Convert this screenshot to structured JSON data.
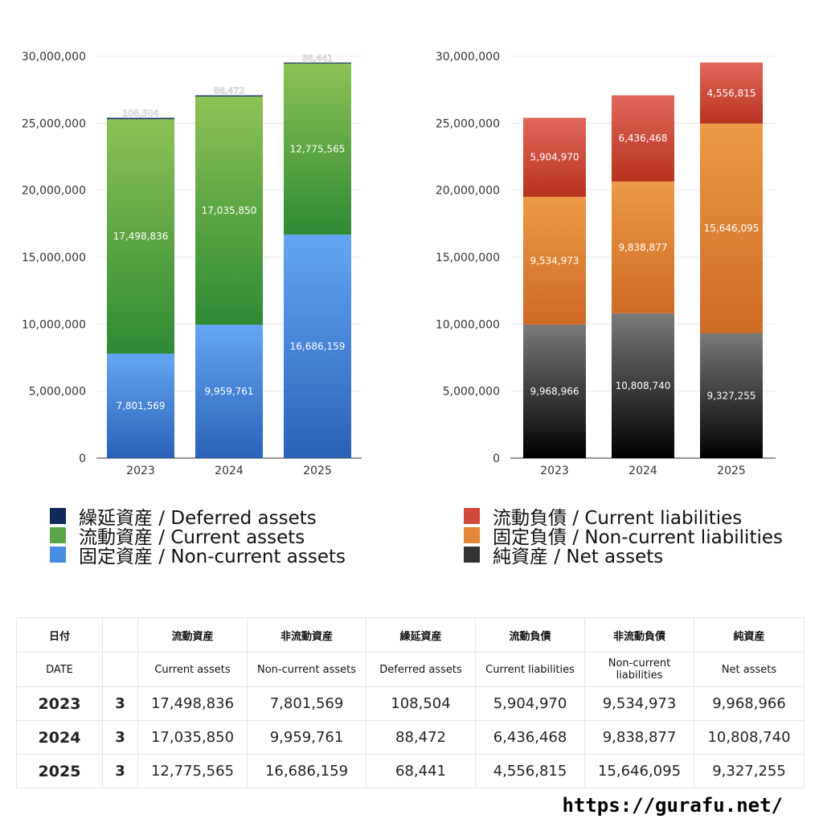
{
  "chart_data": [
    {
      "type": "bar",
      "stacked": true,
      "categories": [
        "2023",
        "2024",
        "2025"
      ],
      "ylim": [
        0,
        30000000
      ],
      "yticks": [
        "0",
        "5,000,000",
        "10,000,000",
        "15,000,000",
        "20,000,000",
        "25,000,000",
        "30,000,000"
      ],
      "series": [
        {
          "name": "固定資産 / Non-current assets",
          "values": [
            7801569,
            9959761,
            16686159
          ],
          "labels": [
            "7,801,569",
            "9,959,761",
            "16,686,159"
          ],
          "color_top": "#64a6f4",
          "color_bottom": "#2b62b8"
        },
        {
          "name": "流動資産 / Current assets",
          "values": [
            17498836,
            17035850,
            12775565
          ],
          "labels": [
            "17,498,836",
            "17,035,850",
            "12,775,565"
          ],
          "color_top": "#8cc256",
          "color_bottom": "#2f8a34"
        },
        {
          "name": "繰延資産 / Deferred assets",
          "values": [
            108504,
            88472,
            68441
          ],
          "labels": [
            "108,504",
            "88,472",
            "68,441"
          ],
          "color_top": "#223f7a",
          "color_bottom": "#0f2a5a"
        }
      ]
    },
    {
      "type": "bar",
      "stacked": true,
      "categories": [
        "2023",
        "2024",
        "2025"
      ],
      "ylim": [
        0,
        30000000
      ],
      "yticks": [
        "0",
        "5,000,000",
        "10,000,000",
        "15,000,000",
        "20,000,000",
        "25,000,000",
        "30,000,000"
      ],
      "series": [
        {
          "name": "純資産 / Net assets",
          "values": [
            9968966,
            10808740,
            9327255
          ],
          "labels": [
            "9,968,966",
            "10,808,740",
            "9,327,255"
          ],
          "color_top": "#7a7a7a",
          "color_bottom": "#000000"
        },
        {
          "name": "固定負債 / Non-current liabilities",
          "values": [
            9534973,
            9838877,
            15646095
          ],
          "labels": [
            "9,534,973",
            "9,838,877",
            "15,646,095"
          ],
          "color_top": "#eb9a45",
          "color_bottom": "#cf6a25"
        },
        {
          "name": "流動負債 / Current liabilities",
          "values": [
            5904970,
            6436468,
            4556815
          ],
          "labels": [
            "5,904,970",
            "6,436,468",
            "4,556,815"
          ],
          "color_top": "#e0685a",
          "color_bottom": "#b8321f"
        }
      ]
    }
  ],
  "legend_left": [
    {
      "label": "繰延資産 / Deferred assets",
      "color": "#0f2a5a"
    },
    {
      "label": "流動資産 / Current assets",
      "color": "#5aa54a"
    },
    {
      "label": "固定資産 / Non-current assets",
      "color": "#4a8ee0"
    }
  ],
  "legend_right": [
    {
      "label": "流動負債 / Current liabilities",
      "color": "#d0483a"
    },
    {
      "label": "固定負債 / Non-current liabilities",
      "color": "#e38635"
    },
    {
      "label": "純資産 / Net assets",
      "color": "#333333"
    }
  ],
  "table": {
    "header_jp": [
      "日付",
      "",
      "流動資産",
      "非流動資産",
      "繰延資産",
      "流動負債",
      "非流動負債",
      "純資産"
    ],
    "header_en": [
      "DATE",
      "",
      "Current assets",
      "Non-current assets",
      "Deferred assets",
      "Current liabilities",
      "Non-current liabilities",
      "Net assets"
    ],
    "rows": [
      {
        "year": "2023",
        "month": "3",
        "values": [
          "17,498,836",
          "7,801,569",
          "108,504",
          "5,904,970",
          "9,534,973",
          "9,968,966"
        ]
      },
      {
        "year": "2024",
        "month": "3",
        "values": [
          "17,035,850",
          "9,959,761",
          "88,472",
          "6,436,468",
          "9,838,877",
          "10,808,740"
        ]
      },
      {
        "year": "2025",
        "month": "3",
        "values": [
          "12,775,565",
          "16,686,159",
          "68,441",
          "4,556,815",
          "15,646,095",
          "9,327,255"
        ]
      }
    ]
  },
  "footer": {
    "url": "https://gurafu.net/"
  }
}
